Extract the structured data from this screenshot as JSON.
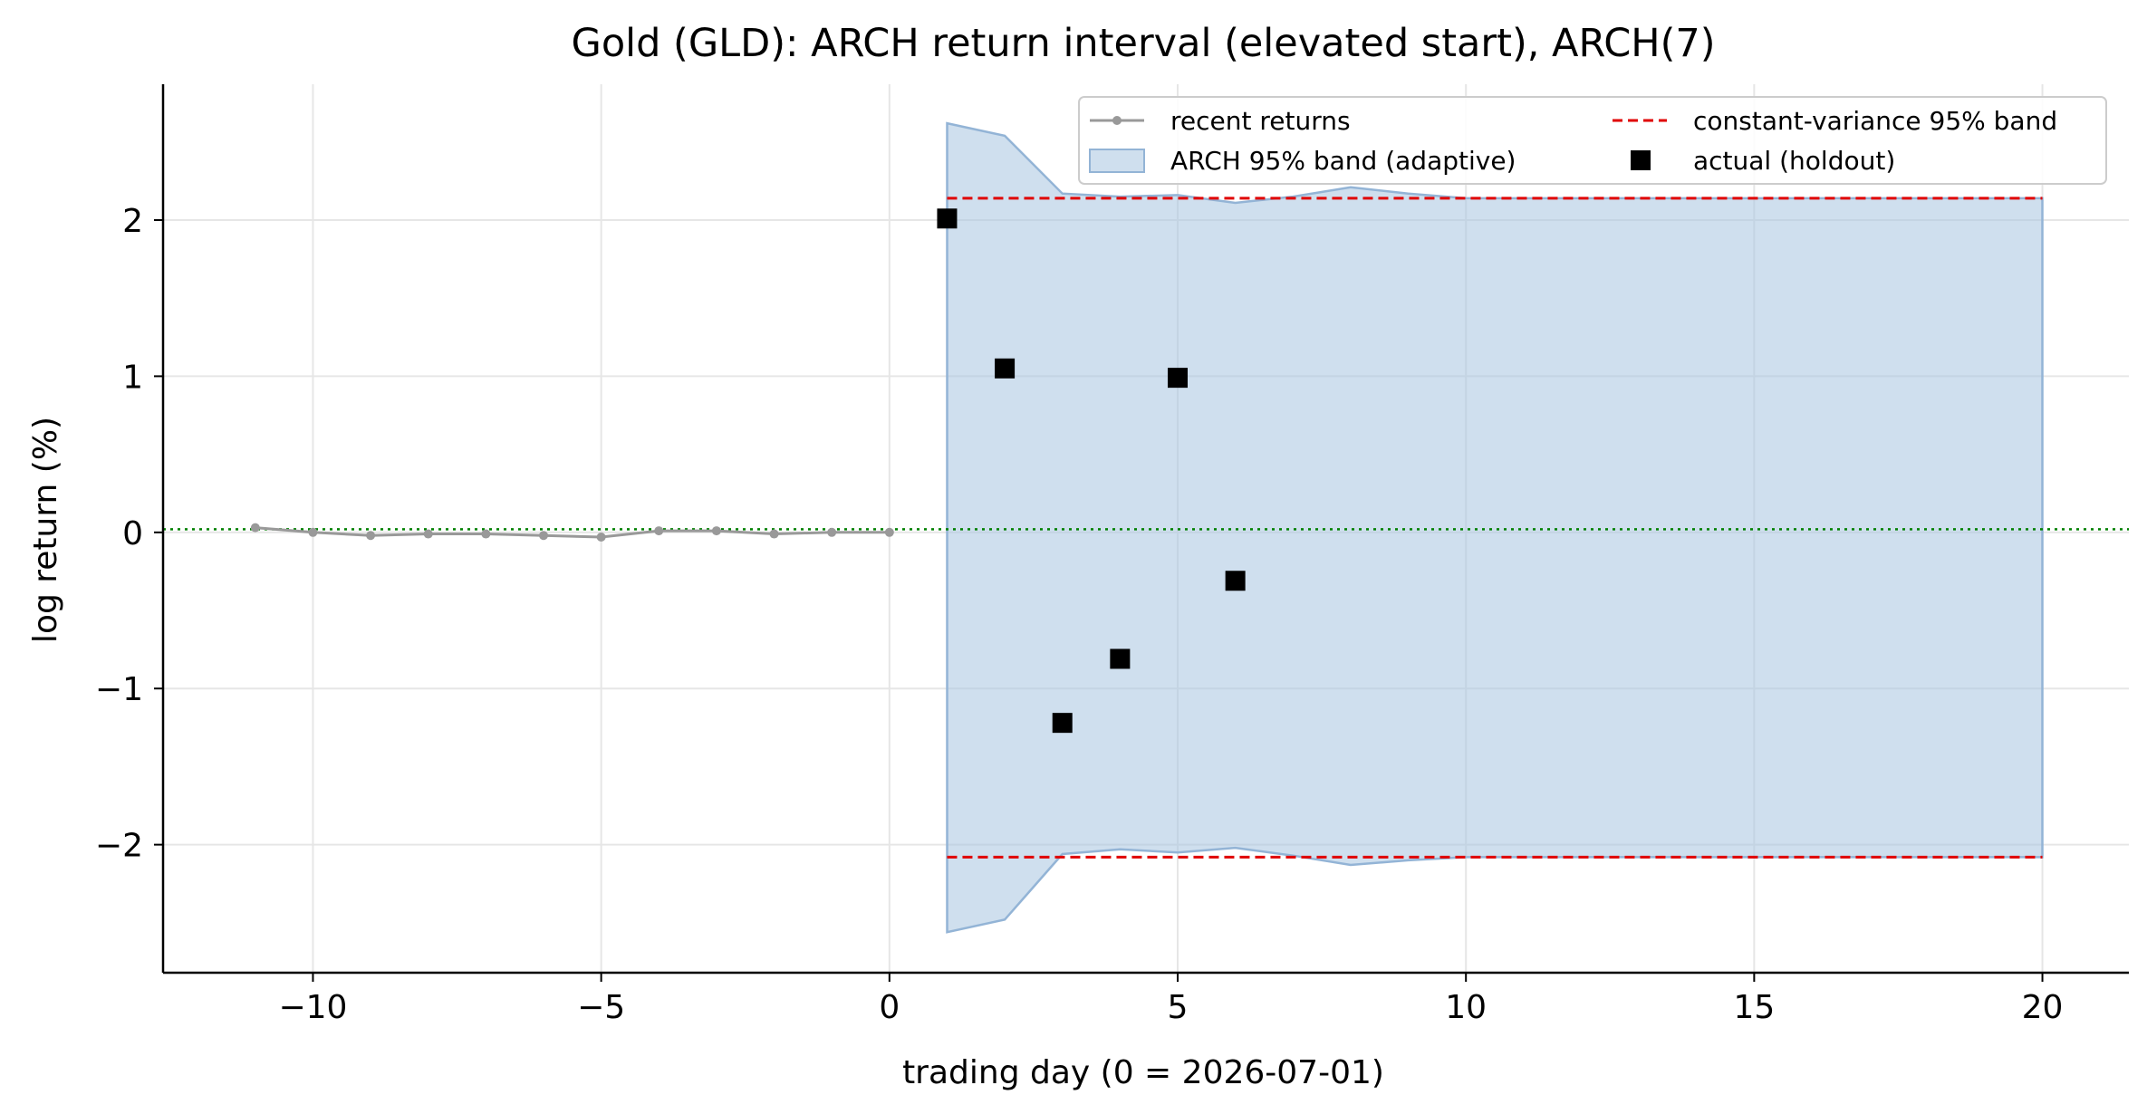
{
  "chart_data": {
    "type": "line",
    "title": "Gold (GLD): ARCH return interval (elevated start), ARCH(7)",
    "xlabel": "trading day (0 = 2026-07-01)",
    "ylabel": "log return (%)",
    "xlim": [
      -12.6,
      21.5
    ],
    "ylim": [
      -2.82,
      2.87
    ],
    "xticks": [
      -10,
      -5,
      0,
      5,
      10,
      15,
      20
    ],
    "yticks": [
      -2,
      -1,
      0,
      1,
      2
    ],
    "xtick_labels": [
      "−10",
      "−5",
      "0",
      "5",
      "10",
      "15",
      "20"
    ],
    "ytick_labels": [
      "−2",
      "−1",
      "0",
      "1",
      "2"
    ],
    "grid": true,
    "legend_position": "top-right",
    "colors": {
      "recent_returns": "#999999",
      "arch_band_fill": "#a7c4e0",
      "arch_band_edge": "#93b4d6",
      "constant_band": "#e00000",
      "actual": "#000000",
      "mean_line": "#008000",
      "grid": "#e6e6e6"
    },
    "series": [
      {
        "name": "recent returns",
        "kind": "line-markers",
        "x": [
          -11,
          -10,
          -9,
          -8,
          -7,
          -6,
          -5,
          -4,
          -3,
          -2,
          -1,
          0
        ],
        "y": [
          0.03,
          0.0,
          -0.02,
          -0.01,
          -0.01,
          -0.02,
          -0.03,
          0.01,
          0.01,
          -0.01,
          0.0,
          0.0
        ]
      },
      {
        "name": "ARCH 95% band (adaptive)",
        "kind": "band",
        "x": [
          1,
          2,
          3,
          4,
          5,
          6,
          7,
          8,
          9,
          10,
          11,
          12,
          13,
          14,
          15,
          16,
          17,
          18,
          19,
          20
        ],
        "upper": [
          2.62,
          2.54,
          2.17,
          2.15,
          2.16,
          2.11,
          2.15,
          2.21,
          2.17,
          2.14,
          2.14,
          2.14,
          2.14,
          2.14,
          2.14,
          2.14,
          2.14,
          2.14,
          2.14,
          2.14
        ],
        "lower": [
          -2.56,
          -2.48,
          -2.06,
          -2.03,
          -2.05,
          -2.02,
          -2.07,
          -2.13,
          -2.1,
          -2.08,
          -2.08,
          -2.08,
          -2.08,
          -2.08,
          -2.08,
          -2.08,
          -2.08,
          -2.08,
          -2.08,
          -2.08
        ]
      },
      {
        "name": "constant-variance 95% band",
        "kind": "dashed-lines",
        "x_range": [
          1,
          20
        ],
        "upper": 2.14,
        "lower": -2.08
      },
      {
        "name": "actual (holdout)",
        "kind": "markers",
        "x": [
          1,
          2,
          3,
          4,
          5,
          6
        ],
        "y": [
          2.01,
          1.05,
          -1.22,
          -0.81,
          0.99,
          -0.31
        ]
      }
    ],
    "mean_line": {
      "y": 0.02
    }
  }
}
